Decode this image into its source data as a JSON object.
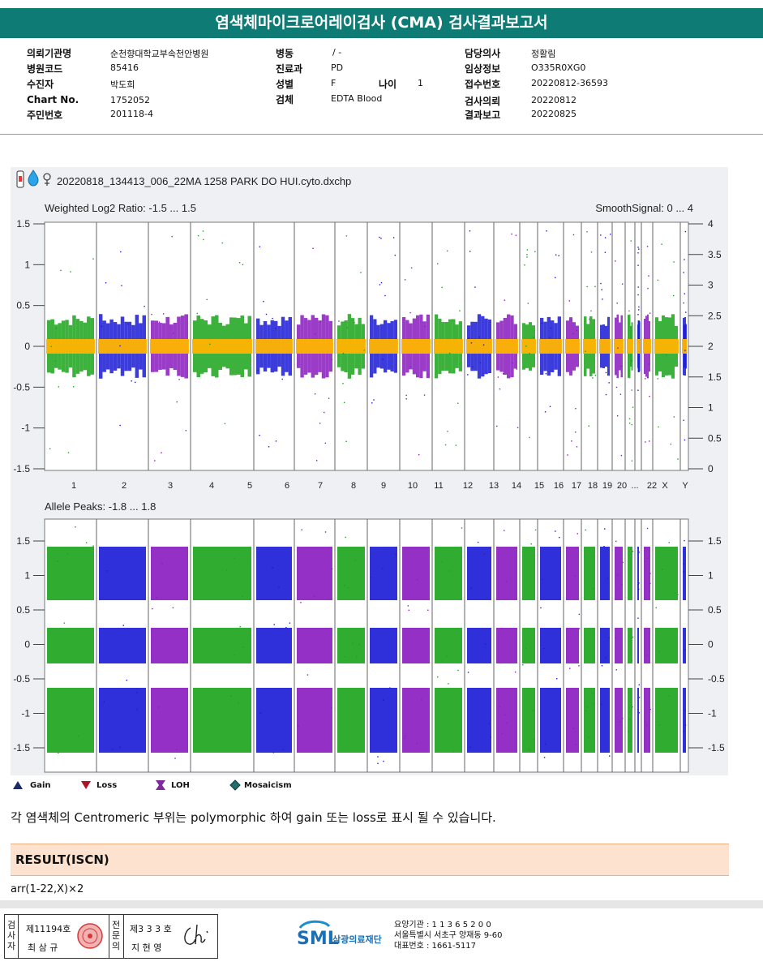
{
  "report": {
    "title": "염색체마이크로어레이검사 (CMA) 검사결과보고서"
  },
  "info": {
    "col1": [
      {
        "label": "의뢰기관명",
        "value": "순천향대학교부속천안병원"
      },
      {
        "label": "병원코드",
        "value": "85416"
      },
      {
        "label": "수진자",
        "value": "박도희"
      },
      {
        "label": "Chart No.",
        "value": "1752052"
      },
      {
        "label": "주민번호",
        "value": "201118-4"
      }
    ],
    "col2": [
      {
        "label": "병동",
        "value": "/ -"
      },
      {
        "label": "진료과",
        "value": "PD"
      },
      {
        "label": "성별",
        "value": "F"
      },
      {
        "label": "검체",
        "value": "EDTA Blood"
      }
    ],
    "age": {
      "label": "나이",
      "value": "1"
    },
    "col3": [
      {
        "label": "담당의사",
        "value": "정활림"
      },
      {
        "label": "임상정보",
        "value": "O335R0XG0"
      },
      {
        "label": "접수번호",
        "value": "20220812-36593"
      },
      {
        "label": "검사의뢰",
        "value": "20220812"
      },
      {
        "label": "결과보고",
        "value": "20220825"
      }
    ]
  },
  "figure": {
    "file_label": "20220818_134413_006_22MA 1258 PARK DO HUI.cyto.dxchp",
    "top_panel_title": "Weighted Log2 Ratio: -1.5 ... 1.5",
    "top_panel_right_title": "SmoothSignal: 0 ... 4",
    "bottom_panel_title": "Allele Peaks: -1.8 ... 1.8",
    "top_left_ticks": [
      "1.5",
      "1",
      "0.5",
      "0",
      "-0.5",
      "-1",
      "-1.5"
    ],
    "top_right_ticks": [
      "4",
      "3.5",
      "3",
      "2.5",
      "2",
      "1.5",
      "1",
      "0.5",
      "0"
    ],
    "bottom_ticks": [
      "1.5",
      "1",
      "0.5",
      "0",
      "-0.5",
      "-1",
      "-1.5"
    ],
    "chromosome_labels": [
      "1",
      "2",
      "3",
      "4",
      "5",
      "6",
      "7",
      "8",
      "9",
      "10",
      "11",
      "12",
      "13",
      "14",
      "15",
      "16",
      "17",
      "18",
      "19",
      "20",
      "...",
      "22",
      "X",
      "Y"
    ],
    "colors": {
      "green": "#1aa31a",
      "blue": "#1a1ad6",
      "purple": "#8a1ac0",
      "orange": "#ffb400",
      "panel_bg": "#eff0f3"
    }
  },
  "legend": [
    {
      "label": "Gain",
      "icon": "triangle-up-icon",
      "color": "#1c2a66"
    },
    {
      "label": "Loss",
      "icon": "triangle-down-icon",
      "color": "#b0122a"
    },
    {
      "label": "LOH",
      "icon": "loh-icon",
      "color": "#7b2aa0"
    },
    {
      "label": "Mosaicism",
      "icon": "diamond-icon",
      "color": "#1f6f6a"
    }
  ],
  "note": "각 염색체의 Centromeric 부위는 polymorphic 하여 gain 또는 loss로 표시 될 수 있습니다.",
  "result": {
    "heading": "RESULT(ISCN)",
    "value": "arr(1-22,X)×2"
  },
  "footer": {
    "tester_label": "검사자",
    "tester_no": "제11194호",
    "tester_name": "최 삼 규",
    "specialist_label": "전문의",
    "specialist_no": "제3 3 3 호",
    "specialist_name": "지 현 영",
    "org_logo": "SML",
    "org_name": "삼광의료재단",
    "institution": "요양기관 : 1 1 3 6 5 2 0 0",
    "address": "서울특별시 서초구 양재동 9-60",
    "phone": "대표번호 : 1661-5117"
  }
}
